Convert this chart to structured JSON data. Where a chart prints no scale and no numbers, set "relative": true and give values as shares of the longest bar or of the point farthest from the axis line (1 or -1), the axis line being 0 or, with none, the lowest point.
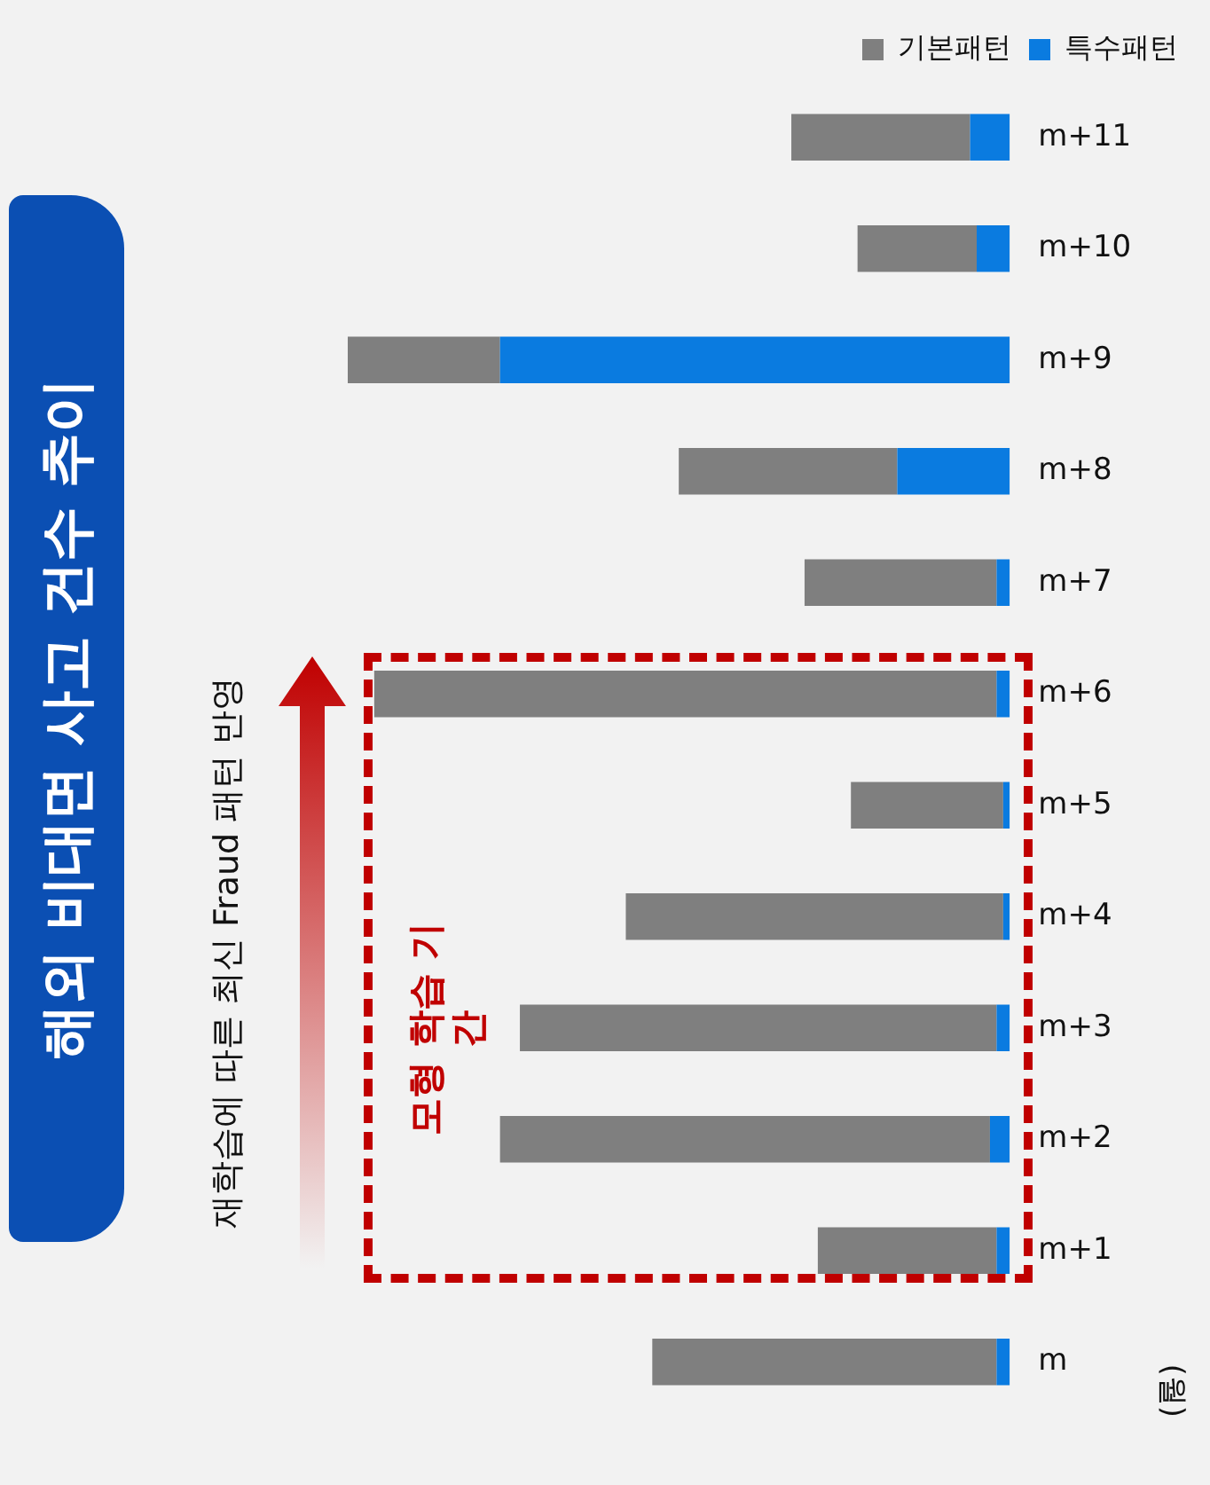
{
  "chart_data": {
    "type": "bar",
    "orientation": "horizontal",
    "title": "해외 비대면 사고 건수 추이",
    "ylabel": "(월)",
    "stacked": true,
    "relative": true,
    "legend": "top right",
    "categories": [
      "m+11",
      "m+10",
      "m+9",
      "m+8",
      "m+7",
      "m+6",
      "m+5",
      "m+4",
      "m+3",
      "m+2",
      "m+1",
      "m"
    ],
    "series": [
      {
        "name": "특수패턴",
        "color": "#0a7be0",
        "values": [
          0.06,
          0.05,
          0.77,
          0.17,
          0.02,
          0.02,
          0.01,
          0.01,
          0.02,
          0.03,
          0.02,
          0.02
        ]
      },
      {
        "name": "기본패턴",
        "color": "#7f7f7f",
        "values": [
          0.27,
          0.18,
          0.23,
          0.33,
          0.29,
          0.94,
          0.23,
          0.57,
          0.72,
          0.74,
          0.27,
          0.52
        ]
      }
    ],
    "annotations": [
      "재학습에 따른 최신 Fraud 패턴 반영",
      "모형 학습 기간"
    ]
  }
}
